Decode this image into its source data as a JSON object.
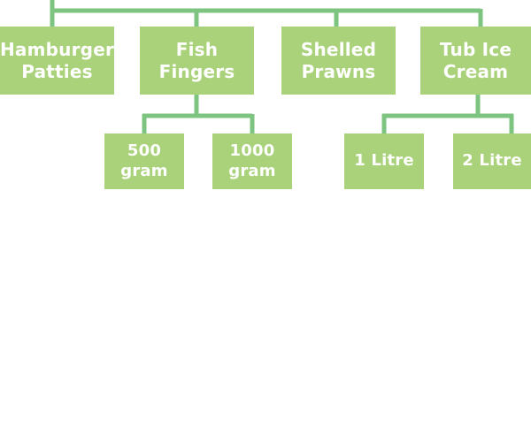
{
  "diagram": {
    "top_nodes": [
      {
        "lines": [
          "Hamburger",
          "Patties"
        ]
      },
      {
        "lines": [
          "Fish",
          "Fingers"
        ]
      },
      {
        "lines": [
          "Shelled",
          "Prawns"
        ]
      },
      {
        "lines": [
          "Tub Ice",
          "Cream"
        ]
      }
    ],
    "fish_fingers_children": [
      {
        "lines": [
          "500",
          "gram"
        ]
      },
      {
        "lines": [
          "1000",
          "gram"
        ]
      }
    ],
    "ice_cream_children": [
      {
        "lines": [
          "1 Litre"
        ]
      },
      {
        "lines": [
          "2 Litre"
        ]
      }
    ]
  },
  "colors": {
    "node_fill": "#a9d27a",
    "connector": "#7cc47f",
    "text": "#ffffff"
  }
}
